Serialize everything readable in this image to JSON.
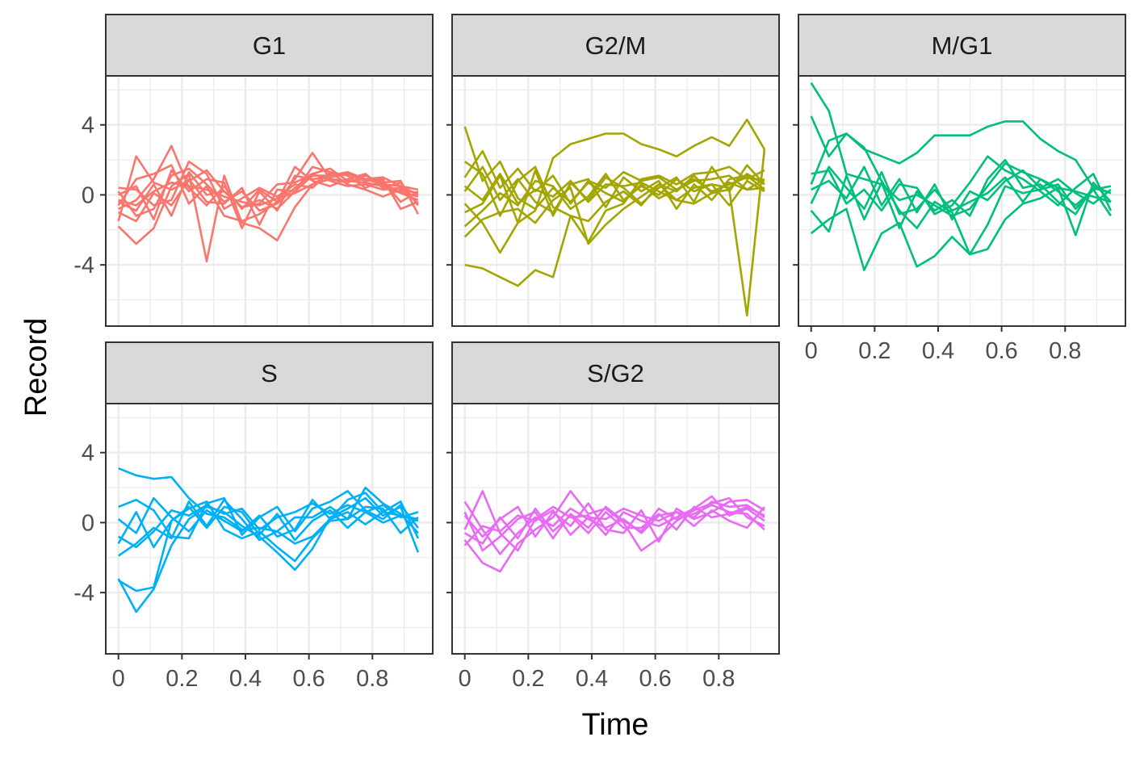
{
  "chart_data": {
    "type": "line",
    "layout": "facet_wrap",
    "xlabel": "Time",
    "ylabel": "Record",
    "xlim": [
      -0.04,
      0.99
    ],
    "ylim": [
      -7.5,
      6.8
    ],
    "x_ticks": [
      0,
      0.2,
      0.4,
      0.6,
      0.8
    ],
    "x_tick_labels": [
      "0",
      "0.2",
      "0.4",
      "0.6",
      "0.8"
    ],
    "y_ticks": [
      -4,
      0,
      4
    ],
    "y_tick_labels": [
      "-4",
      "0",
      "4"
    ],
    "grid": true,
    "legend": "none",
    "x": [
      0,
      0.056,
      0.111,
      0.167,
      0.222,
      0.278,
      0.333,
      0.389,
      0.444,
      0.5,
      0.556,
      0.611,
      0.667,
      0.722,
      0.778,
      0.833,
      0.889,
      0.944
    ],
    "facets": [
      {
        "label": "G1",
        "color": "#F8766D",
        "series": [
          {
            "values": [
              -0.3,
              -0.6,
              0.2,
              0.7,
              0.5,
              0.3,
              -0.1,
              -0.4,
              -0.6,
              -0.2,
              0.1,
              0.6,
              0.9,
              0.8,
              0.7,
              0.5,
              0.1,
              -0.3
            ]
          },
          {
            "values": [
              0.2,
              -1.2,
              -0.8,
              1.1,
              1.5,
              0.6,
              -0.4,
              0.2,
              -0.9,
              -0.5,
              0.4,
              1.2,
              0.8,
              0.5,
              0.6,
              0.3,
              0.4,
              -0.5
            ]
          },
          {
            "values": [
              -1.5,
              2.2,
              0.7,
              0.3,
              0.8,
              1.4,
              0.2,
              -0.7,
              -0.3,
              -0.8,
              0.2,
              1.1,
              1.1,
              1.3,
              0.9,
              0.6,
              0.2,
              -0.1
            ]
          },
          {
            "values": [
              -0.8,
              -0.3,
              0.9,
              2.8,
              0.4,
              -0.6,
              0.5,
              -0.8,
              0.3,
              -0.4,
              0.9,
              2.4,
              0.9,
              0.7,
              1.1,
              0.7,
              0.8,
              -1.1
            ]
          },
          {
            "values": [
              -1.8,
              -2.8,
              -1.9,
              0.5,
              1.2,
              -3.8,
              1.1,
              -1.6,
              -1.9,
              -2.6,
              -0.7,
              0.6,
              1.2,
              1.2,
              0.9,
              1.0,
              0.5,
              0.3
            ]
          },
          {
            "values": [
              0.4,
              0.3,
              -0.6,
              -0.3,
              1.9,
              1.2,
              -0.8,
              -0.2,
              0.4,
              -0.1,
              0.6,
              0.4,
              1.3,
              1.1,
              0.4,
              0.8,
              -0.4,
              0.2
            ]
          },
          {
            "values": [
              -0.6,
              0.9,
              1.2,
              1.7,
              -0.5,
              0.5,
              -1.2,
              -1.5,
              -1.1,
              -0.4,
              1.6,
              0.8,
              0.5,
              0.9,
              1.2,
              0.4,
              0.7,
              -0.6
            ]
          },
          {
            "values": [
              -1.0,
              -1.5,
              0.1,
              -0.6,
              0.9,
              -0.4,
              -0.5,
              0.4,
              -1.7,
              0.3,
              0.2,
              1.6,
              1.3,
              0.6,
              0.3,
              -0.1,
              0.3,
              0.1
            ]
          },
          {
            "values": [
              0.0,
              0.5,
              -1.4,
              1.4,
              0.2,
              0.9,
              0.7,
              -1.9,
              0.2,
              -0.9,
              1.1,
              0.9,
              1.0,
              1.2,
              0.8,
              0.9,
              -0.8,
              -0.4
            ]
          },
          {
            "values": [
              -0.4,
              -0.9,
              0.6,
              -1.2,
              1.3,
              0.0,
              0.2,
              -0.7,
              -0.5,
              0.6,
              0.7,
              1.2,
              1.5,
              0.8,
              0.9,
              0.6,
              0.5,
              0.0
            ]
          }
        ]
      },
      {
        "label": "G2/M",
        "color": "#A3A500",
        "series": [
          {
            "values": [
              3.9,
              0.8,
              1.9,
              -0.2,
              -0.8,
              0.4,
              -0.4,
              0.7,
              0.1,
              -0.4,
              0.6,
              -0.2,
              0.3,
              0.9,
              0.2,
              0.6,
              1.0,
              0.8
            ]
          },
          {
            "values": [
              -4.0,
              -4.2,
              -4.7,
              -5.2,
              -4.3,
              -4.7,
              -1.2,
              -1.5,
              -0.4,
              0.2,
              -0.6,
              0.6,
              -0.3,
              -0.5,
              0.1,
              0.3,
              -6.9,
              2.6
            ]
          },
          {
            "values": [
              -0.5,
              -1.6,
              -3.3,
              -1.6,
              -0.9,
              2.1,
              2.9,
              3.2,
              3.5,
              3.5,
              2.9,
              2.6,
              2.2,
              2.8,
              3.3,
              2.8,
              4.3,
              2.6
            ]
          },
          {
            "values": [
              1.9,
              1.2,
              -1.2,
              0.8,
              1.6,
              -0.7,
              -1.2,
              -2.7,
              -0.9,
              -0.5,
              0.9,
              1.1,
              0.6,
              1.2,
              1.3,
              1.6,
              0.9,
              1.4
            ]
          },
          {
            "values": [
              0.5,
              -0.3,
              1.2,
              -0.5,
              0.3,
              -0.1,
              0.8,
              -0.4,
              0.6,
              0.5,
              0.7,
              0.2,
              -0.3,
              0.4,
              0.6,
              0.4,
              1.2,
              0.6
            ]
          },
          {
            "values": [
              -2.4,
              -1.4,
              -1.0,
              -0.8,
              -1.6,
              -0.3,
              0.4,
              -2.8,
              -1.7,
              -0.8,
              -0.1,
              0.6,
              0.2,
              1.1,
              0.1,
              0.7,
              0.3,
              0.4
            ]
          },
          {
            "values": [
              1.0,
              2.5,
              0.4,
              1.5,
              0.2,
              1.1,
              -0.5,
              0.8,
              0.4,
              1.3,
              0.8,
              1.0,
              0.3,
              0.8,
              0.9,
              1.1,
              0.3,
              0.9
            ]
          },
          {
            "values": [
              -1.0,
              -0.5,
              1.1,
              -1.6,
              1.4,
              -1.2,
              0.7,
              -0.3,
              1.0,
              0.4,
              -0.5,
              0.4,
              1.0,
              -0.4,
              1.6,
              0.2,
              1.7,
              0.6
            ]
          },
          {
            "values": [
              0.2,
              1.6,
              -0.3,
              0.9,
              -0.4,
              -1.0,
              0.6,
              0.9,
              -0.7,
              1.0,
              0.2,
              0.8,
              -0.8,
              0.6,
              -0.3,
              0.9,
              1.1,
              0.3
            ]
          },
          {
            "values": [
              -1.8,
              -0.9,
              0.1,
              -0.6,
              0.8,
              0.5,
              -0.8,
              -0.1,
              1.2,
              -0.3,
              0.5,
              0.0,
              0.9,
              0.2,
              0.6,
              -0.6,
              0.8,
              0.2
            ]
          }
        ]
      },
      {
        "label": "M/G1",
        "color": "#00BF7D",
        "series": [
          {
            "values": [
              6.4,
              4.8,
              1.2,
              0.9,
              0.6,
              -0.3,
              0.0,
              -0.6,
              -1.2,
              -0.8,
              0.5,
              1.8,
              1.3,
              0.9,
              0.4,
              0.2,
              -0.1,
              -0.4
            ]
          },
          {
            "values": [
              4.5,
              2.2,
              3.5,
              2.6,
              2.2,
              1.8,
              2.4,
              3.4,
              3.4,
              3.4,
              3.9,
              4.2,
              4.2,
              3.2,
              2.5,
              2.0,
              0.4,
              0.1
            ]
          },
          {
            "values": [
              -2.2,
              -1.4,
              -0.8,
              -4.3,
              -2.2,
              -1.6,
              -4.1,
              -3.5,
              -2.4,
              -3.4,
              -3.1,
              -1.4,
              -0.5,
              -0.2,
              0.4,
              -2.3,
              0.7,
              -0.4
            ]
          },
          {
            "values": [
              0.6,
              3.1,
              3.5,
              2.7,
              0.8,
              -0.9,
              -1.9,
              -0.4,
              -1.0,
              -3.4,
              -1.7,
              0.5,
              0.1,
              0.3,
              0.6,
              -0.8,
              0.3,
              0.5
            ]
          },
          {
            "values": [
              1.2,
              1.4,
              -0.5,
              0.3,
              -0.9,
              0.6,
              0.4,
              -1.1,
              -0.6,
              0.7,
              2.2,
              1.4,
              0.9,
              0.2,
              -0.6,
              0.4,
              1.2,
              -0.9
            ]
          },
          {
            "values": [
              -0.9,
              -2.1,
              1.1,
              -1.4,
              0.7,
              -1.9,
              0.2,
              -0.9,
              -0.3,
              -1.2,
              0.9,
              2.0,
              0.4,
              0.6,
              -0.4,
              -1.1,
              0.5,
              0.1
            ]
          },
          {
            "values": [
              0.3,
              0.8,
              -0.2,
              1.6,
              -0.6,
              0.9,
              -1.0,
              0.6,
              -1.4,
              0.2,
              -0.3,
              0.8,
              1.4,
              0.4,
              0.9,
              0.1,
              -0.5,
              0.3
            ]
          },
          {
            "values": [
              -0.5,
              1.6,
              0.4,
              -0.8,
              1.3,
              -1.1,
              -0.8,
              0.3,
              -0.9,
              -0.4,
              0.1,
              1.0,
              -0.4,
              0.9,
              0.2,
              -0.6,
              0.3,
              -1.2
            ]
          }
        ]
      },
      {
        "label": "S",
        "color": "#00B0F6",
        "series": [
          {
            "values": [
              3.1,
              2.7,
              2.5,
              2.6,
              1.4,
              0.5,
              0.3,
              -0.4,
              -0.3,
              -0.5,
              -1.2,
              -0.8,
              0.2,
              1.3,
              1.7,
              0.6,
              0.4,
              0.1
            ]
          },
          {
            "values": [
              -3.2,
              -5.1,
              -3.8,
              -1.3,
              0.2,
              0.9,
              0.6,
              -0.2,
              -0.8,
              -1.7,
              -2.7,
              -1.5,
              0.3,
              0.8,
              1.4,
              0.4,
              0.9,
              -1.7
            ]
          },
          {
            "values": [
              -3.3,
              -3.9,
              -3.7,
              0.1,
              0.8,
              1.2,
              -0.4,
              -0.9,
              -0.5,
              -1.4,
              -2.2,
              -0.9,
              0.1,
              0.2,
              2.0,
              1.1,
              0.5,
              -0.6
            ]
          },
          {
            "values": [
              0.9,
              1.3,
              0.7,
              -0.8,
              -0.9,
              1.1,
              1.4,
              -0.7,
              0.3,
              0.9,
              -0.5,
              0.8,
              1.2,
              1.8,
              0.7,
              0.2,
              1.0,
              -0.3
            ]
          },
          {
            "values": [
              -0.8,
              -1.4,
              -0.5,
              0.7,
              0.4,
              1.0,
              0.5,
              0.8,
              -0.4,
              0.3,
              0.6,
              1.1,
              0.5,
              1.0,
              0.6,
              1.0,
              0.3,
              0.6
            ]
          },
          {
            "values": [
              -1.9,
              -1.2,
              -0.3,
              -0.9,
              1.2,
              -0.2,
              1.3,
              0.2,
              -1.0,
              -0.5,
              0.3,
              0.3,
              0.9,
              0.2,
              0.9,
              0.8,
              -0.6,
              0.3
            ]
          },
          {
            "values": [
              0.2,
              -0.6,
              1.4,
              0.3,
              -0.5,
              0.7,
              0.1,
              -0.5,
              0.4,
              -0.8,
              -0.4,
              1.3,
              0.2,
              0.6,
              -0.1,
              0.6,
              1.2,
              -0.9
            ]
          },
          {
            "values": [
              -1.2,
              0.6,
              -1.4,
              0.1,
              0.9,
              -0.3,
              0.9,
              0.6,
              -0.7,
              0.5,
              -1.0,
              0.1,
              0.7,
              -0.3,
              0.6,
              0.0,
              0.4,
              0.2
            ]
          }
        ]
      },
      {
        "label": "S/G2",
        "color": "#E76BF3",
        "series": [
          {
            "values": [
              1.2,
              -0.4,
              -1.8,
              -0.6,
              0.3,
              -0.2,
              0.8,
              0.2,
              -0.3,
              0.2,
              -0.6,
              0.4,
              0.6,
              0.3,
              1.2,
              0.9,
              1.0,
              0.3
            ]
          },
          {
            "values": [
              -0.4,
              1.8,
              -0.6,
              -1.6,
              0.2,
              0.9,
              0.3,
              0.4,
              -0.7,
              0.6,
              0.1,
              -0.2,
              0.3,
              0.8,
              1.5,
              0.4,
              0.8,
              0.1
            ]
          },
          {
            "values": [
              -1.0,
              -2.3,
              -2.8,
              -1.2,
              -0.4,
              0.3,
              1.8,
              0.5,
              0.8,
              0.0,
              -1.6,
              -0.9,
              0.1,
              0.7,
              1.1,
              1.4,
              0.3,
              -0.2
            ]
          },
          {
            "values": [
              0.4,
              -0.8,
              0.2,
              0.9,
              -0.8,
              0.6,
              -0.2,
              1.1,
              -0.4,
              -0.6,
              0.7,
              -1.1,
              0.8,
              0.2,
              0.6,
              1.2,
              1.3,
              0.7
            ]
          },
          {
            "values": [
              -0.6,
              -1.2,
              0.3,
              -0.9,
              0.8,
              -0.5,
              0.4,
              -0.6,
              0.6,
              -0.3,
              -0.3,
              0.5,
              -0.4,
              0.9,
              0.3,
              0.5,
              0.9,
              0.4
            ]
          },
          {
            "values": [
              -1.3,
              -0.2,
              -0.5,
              0.4,
              0.1,
              0.7,
              -0.7,
              0.3,
              0.2,
              0.8,
              0.4,
              0.1,
              0.6,
              -0.2,
              0.7,
              0.1,
              -0.3,
              0.9
            ]
          },
          {
            "values": [
              0.6,
              -1.6,
              -0.8,
              0.2,
              0.6,
              -0.9,
              0.5,
              -0.3,
              0.9,
              0.1,
              -0.5,
              0.8,
              0.2,
              0.5,
              1.0,
              0.6,
              0.5,
              -0.4
            ]
          }
        ]
      }
    ]
  }
}
